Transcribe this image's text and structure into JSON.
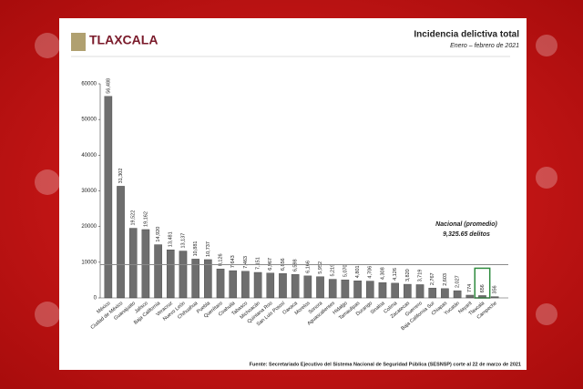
{
  "chart_data": {
    "type": "bar",
    "title": "Incidencia delictiva total",
    "subtitle": "Enero – febrero de 2021",
    "logo": "TLAXCALA",
    "source": "Fuente: Secretariado Ejecutivo del Sistema Nacional de Seguridad Pública (SESNSP) corte al 22 de marzo de 2021",
    "categories": [
      "México",
      "Ciudad de México",
      "Guanajuato",
      "Jalisco",
      "Baja California",
      "Veracruz",
      "Nuevo León",
      "Chihuahua",
      "Puebla",
      "Querétaro",
      "Coahuila",
      "Tabasco",
      "Michoacán",
      "Quintana Roo",
      "San Luis Potosí",
      "Oaxaca",
      "Morelos",
      "Sonora",
      "Aguascalientes",
      "Hidalgo",
      "Tamaulipas",
      "Durango",
      "Sinaloa",
      "Colima",
      "Zacatecas",
      "Guerrero",
      "Baja California Sur",
      "Chiapas",
      "Yucatán",
      "Nayarit",
      "Tlaxcala",
      "Campeche"
    ],
    "values": [
      56488,
      31302,
      19522,
      19162,
      14920,
      13481,
      13137,
      10881,
      10737,
      8126,
      7643,
      7463,
      7151,
      6967,
      6856,
      6598,
      6166,
      5952,
      5219,
      5070,
      4801,
      4706,
      4308,
      4126,
      3820,
      3719,
      2767,
      2603,
      2027,
      774,
      656,
      356
    ],
    "value_labels": [
      "56,488",
      "31,302",
      "19,522",
      "19,162",
      "14,920",
      "13,481",
      "13,137",
      "10,881",
      "10,737",
      "8,126",
      "7,643",
      "7,463",
      "7,151",
      "6,967",
      "6,856",
      "6,598",
      "6,166",
      "5,952",
      "5,219",
      "5,070",
      "4,801",
      "4,706",
      "4,308",
      "4,126",
      "3,820",
      "3,719",
      "2,767",
      "2,603",
      "2,027",
      "774",
      "656",
      "356"
    ],
    "color": "#6e6e6e",
    "ylim": [
      0,
      60000
    ],
    "yticks": [
      0,
      10000,
      20000,
      30000,
      40000,
      50000,
      60000
    ],
    "reference_line": {
      "value": 9325.65,
      "label": "Nacional (promedio)",
      "value_label": "9,325.65 delitos",
      "color": "#8a8a8a"
    },
    "highlight": {
      "category": "Tlaxcala",
      "color": "#2e8b3e"
    }
  }
}
